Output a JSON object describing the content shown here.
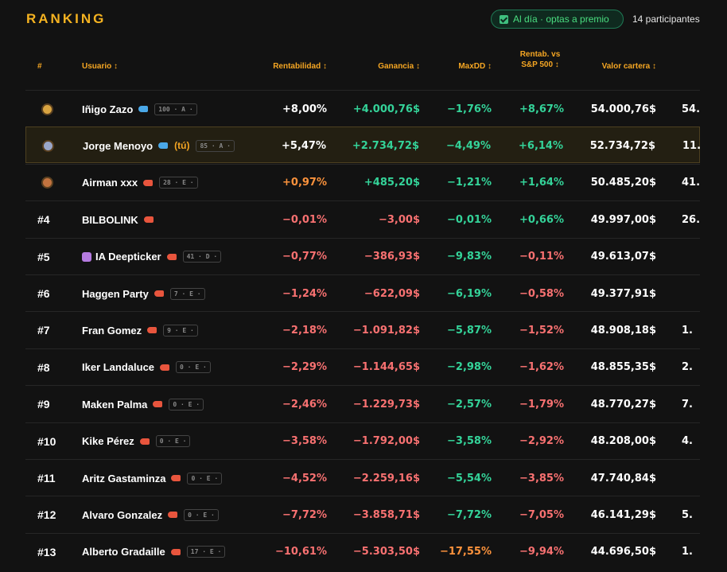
{
  "header": {
    "title": "RANKING",
    "status": "Al día · optas a premio",
    "participants": "14 participantes"
  },
  "table": {
    "columns": {
      "rank": "#",
      "user": "Usuario ↕",
      "ret": "Rentabilidad ↕",
      "gain": "Ganancia ↕",
      "maxdd": "MaxDD ↕",
      "vs": "Rentab. vs S&P 500 ↕",
      "value": "Valor cartera ↕"
    },
    "rows": [
      {
        "medal": "gold",
        "name": "Iñigo Zazo",
        "icon": "fish",
        "tag": "100 · A ·",
        "ret": "+8,00%",
        "gain": "+4.000,76$",
        "maxdd": "−1,76%",
        "vs": "+8,67%",
        "value": "54.000,76$",
        "extra": "54.",
        "tones": [
          "white",
          "green",
          "green",
          "green"
        ]
      },
      {
        "medal": "silver",
        "name": "Jorge Menoyo",
        "icon": "fish",
        "you": "(tú)",
        "tag": "85 · A ·",
        "ret": "+5,47%",
        "gain": "+2.734,72$",
        "maxdd": "−4,49%",
        "vs": "+6,14%",
        "value": "52.734,72$",
        "extra": "11.",
        "tones": [
          "white",
          "green",
          "green",
          "green"
        ],
        "highlight": true
      },
      {
        "medal": "bronze",
        "name": "Airman xxx",
        "icon": "shrimp",
        "tag": "28 · E ·",
        "ret": "+0,97%",
        "gain": "+485,20$",
        "maxdd": "−1,21%",
        "vs": "+1,64%",
        "value": "50.485,20$",
        "extra": "41.",
        "tones": [
          "orange",
          "green",
          "green",
          "green"
        ]
      },
      {
        "rank": "#4",
        "name": "BILBOLINK",
        "icon": "shrimp",
        "ret": "−0,01%",
        "gain": "−3,00$",
        "maxdd": "−0,01%",
        "vs": "+0,66%",
        "value": "49.997,00$",
        "extra": "26.",
        "tones": [
          "red",
          "red",
          "green",
          "green"
        ]
      },
      {
        "rank": "#5",
        "name": "IA Deepticker",
        "robot": true,
        "icon": "shrimp",
        "tag": "41 · D ·",
        "ret": "−0,77%",
        "gain": "−386,93$",
        "maxdd": "−9,83%",
        "vs": "−0,11%",
        "value": "49.613,07$",
        "extra": null,
        "tones": [
          "red",
          "red",
          "green",
          "red"
        ]
      },
      {
        "rank": "#6",
        "name": "Haggen Party",
        "icon": "shrimp",
        "tag": "7 · E ·",
        "ret": "−1,24%",
        "gain": "−622,09$",
        "maxdd": "−6,19%",
        "vs": "−0,58%",
        "value": "49.377,91$",
        "extra": null,
        "tones": [
          "red",
          "red",
          "green",
          "red"
        ]
      },
      {
        "rank": "#7",
        "name": "Fran Gomez",
        "icon": "shrimp",
        "tag": "9 · E ·",
        "ret": "−2,18%",
        "gain": "−1.091,82$",
        "maxdd": "−5,87%",
        "vs": "−1,52%",
        "value": "48.908,18$",
        "extra": "1.",
        "tones": [
          "red",
          "red",
          "green",
          "red"
        ]
      },
      {
        "rank": "#8",
        "name": "Iker Landaluce",
        "icon": "shrimp",
        "tag": "0 · E ·",
        "ret": "−2,29%",
        "gain": "−1.144,65$",
        "maxdd": "−2,98%",
        "vs": "−1,62%",
        "value": "48.855,35$",
        "extra": "2.",
        "tones": [
          "red",
          "red",
          "green",
          "red"
        ]
      },
      {
        "rank": "#9",
        "name": "Maken Palma",
        "icon": "shrimp",
        "tag": "0 · E ·",
        "ret": "−2,46%",
        "gain": "−1.229,73$",
        "maxdd": "−2,57%",
        "vs": "−1,79%",
        "value": "48.770,27$",
        "extra": "7.",
        "tones": [
          "red",
          "red",
          "green",
          "red"
        ]
      },
      {
        "rank": "#10",
        "name": "Kike Pérez",
        "icon": "shrimp",
        "tag": "0 · E ·",
        "ret": "−3,58%",
        "gain": "−1.792,00$",
        "maxdd": "−3,58%",
        "vs": "−2,92%",
        "value": "48.208,00$",
        "extra": "4.",
        "tones": [
          "red",
          "red",
          "green",
          "red"
        ]
      },
      {
        "rank": "#11",
        "name": "Aritz Gastaminza",
        "icon": "shrimp",
        "tag": "0 · E ·",
        "ret": "−4,52%",
        "gain": "−2.259,16$",
        "maxdd": "−5,54%",
        "vs": "−3,85%",
        "value": "47.740,84$",
        "extra": null,
        "tones": [
          "red",
          "red",
          "green",
          "red"
        ]
      },
      {
        "rank": "#12",
        "name": "Alvaro Gonzalez",
        "icon": "shrimp",
        "tag": "0 · E ·",
        "ret": "−7,72%",
        "gain": "−3.858,71$",
        "maxdd": "−7,72%",
        "vs": "−7,05%",
        "value": "46.141,29$",
        "extra": "5.",
        "tones": [
          "red",
          "red",
          "green",
          "red"
        ]
      },
      {
        "rank": "#13",
        "name": "Alberto Gradaille",
        "icon": "shrimp",
        "tag": "17 · E ·",
        "ret": "−10,61%",
        "gain": "−5.303,50$",
        "maxdd": "−17,55%",
        "vs": "−9,94%",
        "value": "44.696,50$",
        "extra": "1.",
        "tones": [
          "red",
          "red",
          "orange",
          "red"
        ]
      }
    ]
  }
}
